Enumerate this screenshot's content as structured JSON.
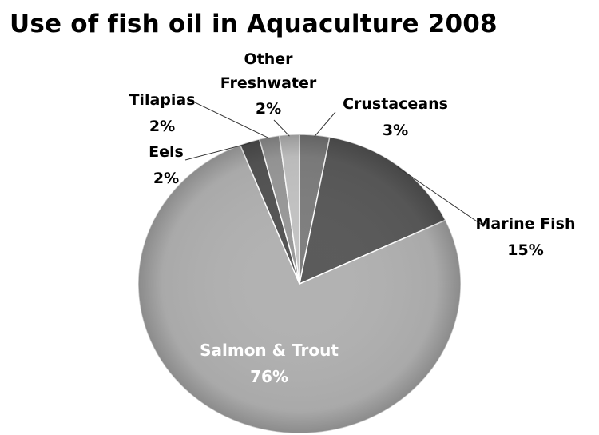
{
  "chart_data": {
    "type": "pie",
    "title": "Use of fish oil in Aquaculture 2008",
    "slices": [
      {
        "label": "Crustaceans",
        "label_lines": [
          "Crustaceans"
        ],
        "percent_label": "3%",
        "value": 3,
        "color": "#7f7f7f"
      },
      {
        "label": "Marine Fish",
        "label_lines": [
          "Marine Fish"
        ],
        "percent_label": "15%",
        "value": 15,
        "color": "#5a5a5a"
      },
      {
        "label": "Salmon & Trout",
        "label_lines": [
          "Salmon & Trout"
        ],
        "percent_label": "76%",
        "value": 76,
        "color": "#b2b2b2"
      },
      {
        "label": "Eels",
        "label_lines": [
          "Eels"
        ],
        "percent_label": "2%",
        "value": 2,
        "color": "#555555"
      },
      {
        "label": "Tilapias",
        "label_lines": [
          "Tilapias"
        ],
        "percent_label": "2%",
        "value": 2,
        "color": "#9a9a9a"
      },
      {
        "label": "Other Freshwater",
        "label_lines": [
          "Other",
          "Freshwater"
        ],
        "percent_label": "2%",
        "value": 2,
        "color": "#c4c4c4"
      }
    ]
  }
}
